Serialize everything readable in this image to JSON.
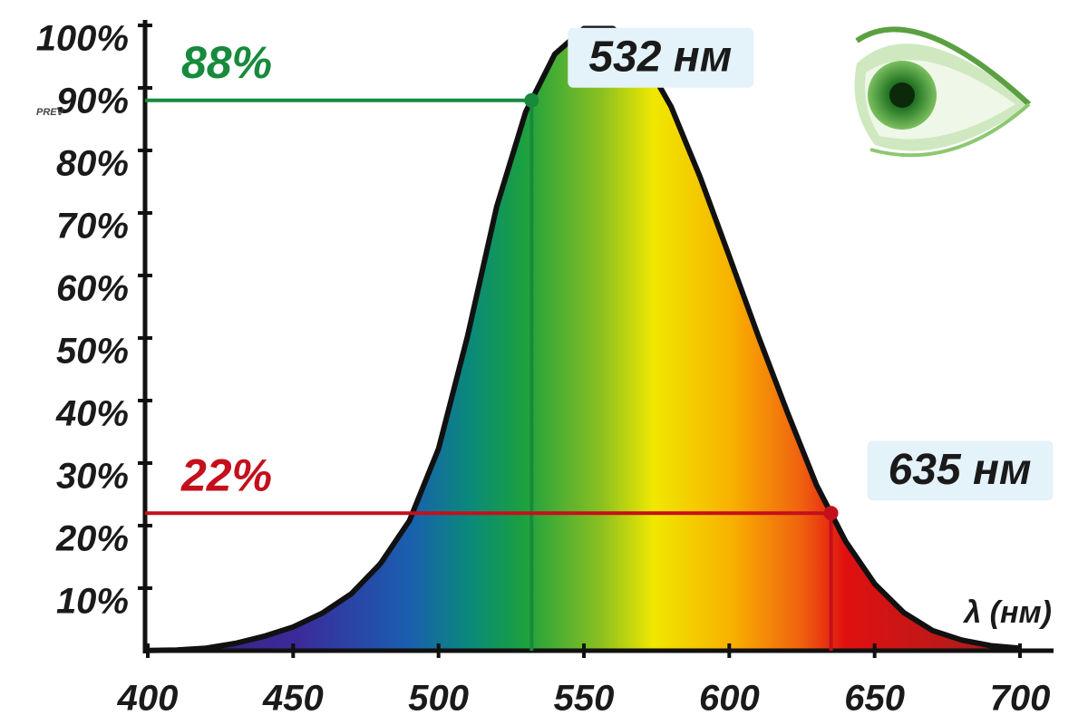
{
  "chart_data": {
    "type": "area",
    "x": [
      400,
      410,
      420,
      430,
      440,
      450,
      460,
      470,
      480,
      490,
      500,
      510,
      520,
      530,
      540,
      550,
      560,
      570,
      580,
      590,
      600,
      610,
      620,
      630,
      640,
      650,
      660,
      670,
      680,
      690,
      700
    ],
    "values": [
      0.04,
      0.12,
      0.4,
      1.16,
      2.3,
      3.8,
      6,
      9.1,
      13.9,
      20.8,
      32.3,
      50.3,
      71,
      86.2,
      95.4,
      99.5,
      99.5,
      95.2,
      87,
      75.7,
      63.1,
      50.3,
      38.1,
      26.5,
      17.5,
      10.7,
      6.1,
      3.2,
      1.7,
      0.8,
      0.4
    ],
    "x_label": "λ (нм)",
    "xlim": [
      400,
      700
    ],
    "xticks": [
      400,
      450,
      500,
      550,
      600,
      650,
      700
    ],
    "ylim": [
      0,
      100
    ],
    "yticks": [
      {
        "value": 10,
        "label": "10%"
      },
      {
        "value": 20,
        "label": "20%"
      },
      {
        "value": 30,
        "label": "30%"
      },
      {
        "value": 40,
        "label": "40%"
      },
      {
        "value": 50,
        "label": "50%"
      },
      {
        "value": 60,
        "label": "60%"
      },
      {
        "value": 70,
        "label": "70%"
      },
      {
        "value": 80,
        "label": "80%"
      },
      {
        "value": 90,
        "label": "90%"
      },
      {
        "value": 100,
        "label": "100%"
      }
    ],
    "markers": [
      {
        "x": 532,
        "y": 88,
        "value_label": "88%",
        "x_label": "532 нм",
        "color": "#178a3c"
      },
      {
        "x": 635,
        "y": 22,
        "value_label": "22%",
        "x_label": "635 нм",
        "color": "#c4101c"
      }
    ],
    "overlay_label": "PREV"
  }
}
